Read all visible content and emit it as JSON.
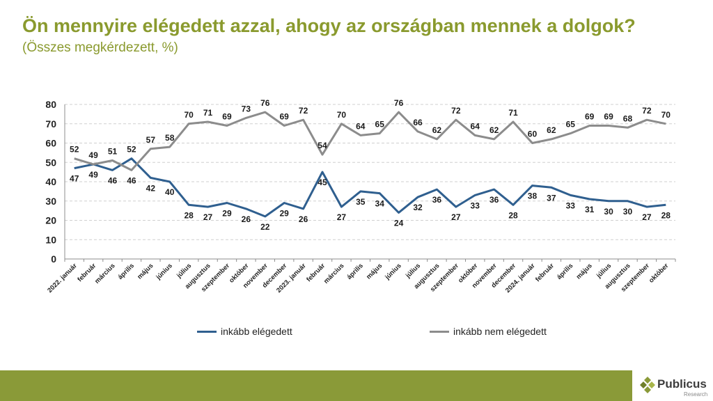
{
  "header": {
    "title": "Ön mennyire elégedett azzal, ahogy az országban mennek a dolgok?",
    "subtitle": "(Összes megkérdezett, %)"
  },
  "brand": {
    "name": "Publicus",
    "sub": "Research",
    "accent": "#8a9a38"
  },
  "chart_data": {
    "type": "line",
    "categories": [
      "2022. január",
      "február",
      "március",
      "április",
      "május",
      "június",
      "július",
      "augusztus",
      "szeptember",
      "október",
      "november",
      "december",
      "2023. január",
      "február",
      "március",
      "április",
      "május",
      "június",
      "július",
      "augusztus",
      "szeptember",
      "október",
      "november",
      "december",
      "2024. január",
      "február",
      "április",
      "május",
      "július",
      "augusztus",
      "szeptember",
      "október"
    ],
    "series": [
      {
        "name": "inkább elégedett",
        "color": "#2f5f8f",
        "values": [
          47,
          49,
          46,
          52,
          42,
          40,
          28,
          27,
          29,
          26,
          22,
          29,
          26,
          45,
          27,
          35,
          34,
          24,
          32,
          36,
          27,
          33,
          36,
          28,
          38,
          37,
          33,
          31,
          30,
          30,
          27,
          28
        ]
      },
      {
        "name": "inkább nem elégedett",
        "color": "#8c8c8c",
        "values": [
          52,
          49,
          51,
          46,
          57,
          58,
          70,
          71,
          69,
          73,
          76,
          69,
          72,
          54,
          70,
          64,
          65,
          76,
          66,
          62,
          72,
          64,
          62,
          71,
          60,
          62,
          65,
          69,
          69,
          68,
          72,
          70
        ]
      }
    ],
    "yticks": [
      0,
      10,
      20,
      30,
      40,
      50,
      60,
      70,
      80
    ],
    "ylim": [
      0,
      80
    ],
    "grid": "horizontal dashed"
  }
}
